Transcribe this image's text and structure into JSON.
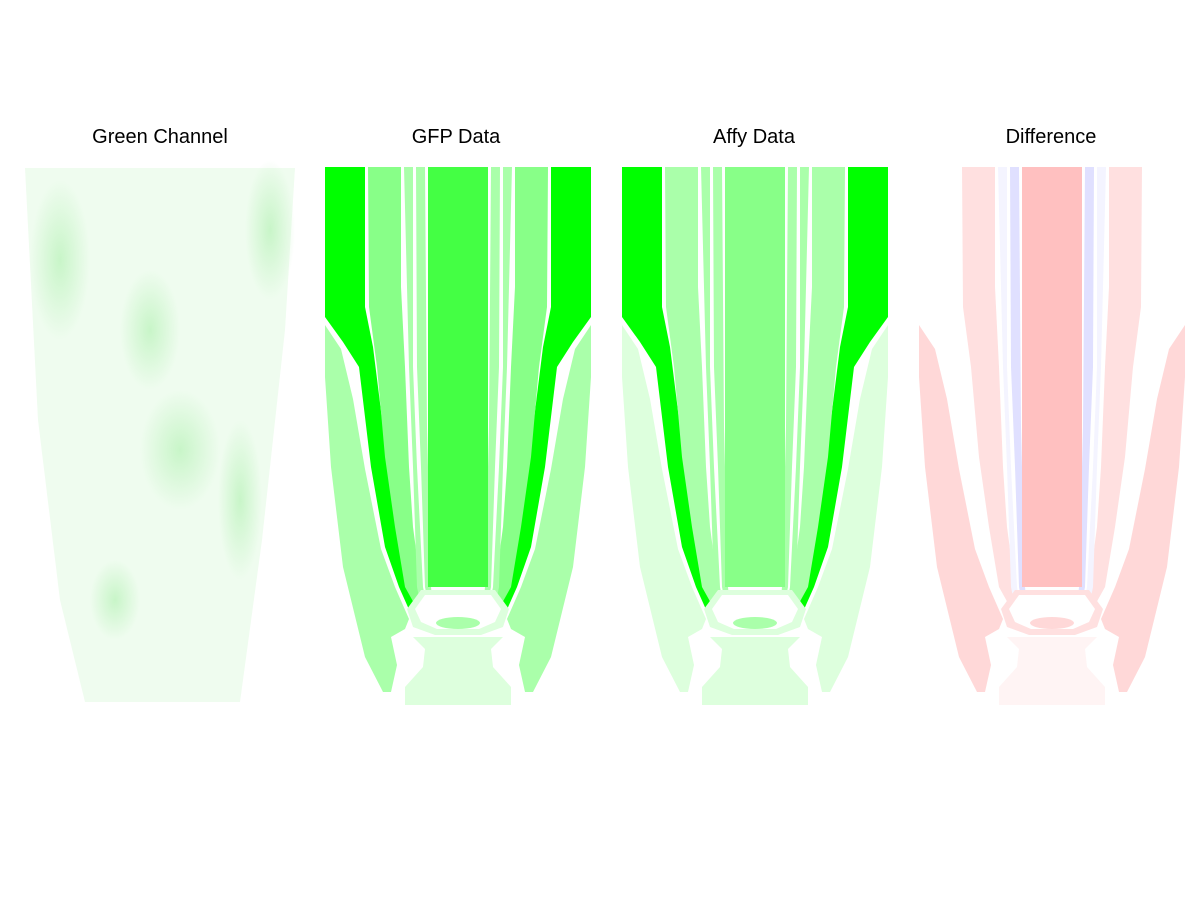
{
  "panels": [
    {
      "title": "Green Channel"
    },
    {
      "title": "GFP Data"
    },
    {
      "title": "Affy Data"
    },
    {
      "title": "Difference"
    }
  ]
}
